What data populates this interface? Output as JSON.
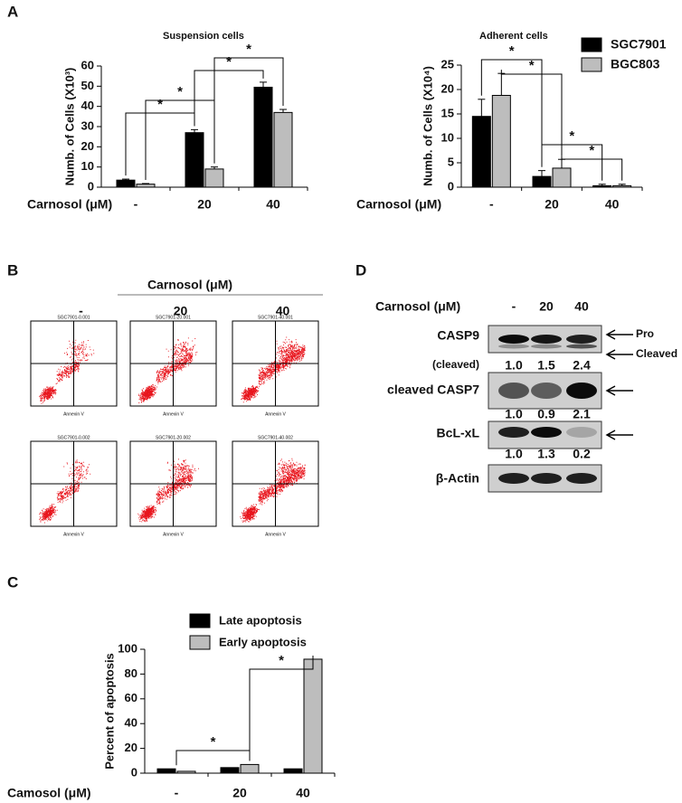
{
  "panel_labels": {
    "a": "A",
    "b": "B",
    "c": "C",
    "d": "D"
  },
  "significance_marker": "*",
  "chart_data": [
    {
      "type": "bar",
      "title": "Suspension cells",
      "y_label": "Numb. of Cells (X10³)",
      "x_label": "Carnosol (μM)",
      "categories": [
        "-",
        "20",
        "40"
      ],
      "series": [
        {
          "color": "#000000",
          "values": [
            3.5,
            27,
            49.5
          ],
          "errors": [
            0.5,
            1.5,
            2.5
          ]
        },
        {
          "color": "#bdbdbd",
          "values": [
            1.5,
            9,
            37
          ],
          "errors": [
            0.3,
            1,
            1.5
          ]
        }
      ],
      "ylim": [
        0,
        60
      ],
      "yticks": [
        0,
        10,
        20,
        30,
        40,
        50,
        60
      ]
    },
    {
      "type": "bar",
      "title": "Adherent cells",
      "y_label": "Numb. of Cells (X10⁴)",
      "x_label": "Carnosol (μM)",
      "categories": [
        "-",
        "20",
        "40"
      ],
      "series": [
        {
          "name": "SGC7901",
          "color": "#000000",
          "values": [
            14.5,
            2.2,
            0.3
          ],
          "errors": [
            3.5,
            1.2,
            0.3
          ]
        },
        {
          "name": "BGC803",
          "color": "#bdbdbd",
          "values": [
            18.8,
            3.9,
            0.3
          ],
          "errors": [
            4.5,
            1.8,
            0.3
          ]
        }
      ],
      "ylim": [
        0,
        25
      ],
      "yticks": [
        0,
        5,
        10,
        15,
        20,
        25
      ],
      "legend": "top-right"
    },
    {
      "type": "bar",
      "y_label": "Percent of apoptosis",
      "x_label": "Camosol (μM)",
      "categories": [
        "-",
        "20",
        "40"
      ],
      "series": [
        {
          "name": "Late apoptosis",
          "color": "#000000",
          "values": [
            3.5,
            4.5,
            3.5
          ]
        },
        {
          "name": "Early apoptosis",
          "color": "#bdbdbd",
          "values": [
            1.5,
            7,
            92
          ]
        }
      ],
      "ylim": [
        0,
        100
      ],
      "yticks": [
        0,
        20,
        40,
        60,
        80,
        100
      ],
      "legend": "top"
    }
  ],
  "flow_cytometry": {
    "header": "Carnosol (μM)",
    "columns": [
      "-",
      "20",
      "40"
    ],
    "x_label": "Annexin V",
    "plot_titles": [
      "SGC7901-0.001",
      "SGC7901-20.001",
      "SGC7901-40.001",
      "SGC7901-0.002",
      "SGC7901-20.002",
      "SGC7901-40.002"
    ]
  },
  "western_blot": {
    "header": "Carnosol (μM)",
    "lanes": [
      "-",
      "20",
      "40"
    ],
    "rows": [
      {
        "label": "CASP9",
        "sublabel": "(cleaved)",
        "quantification": [
          "1.0",
          "1.5",
          "2.4"
        ],
        "arrows": [
          "Pro",
          "Cleaved"
        ]
      },
      {
        "label": "cleaved CASP7",
        "quantification": [
          "1.0",
          "0.9",
          "2.1"
        ]
      },
      {
        "label": "BcL-xL",
        "quantification": [
          "1.0",
          "1.3",
          "0.2"
        ]
      },
      {
        "label": "β-Actin"
      }
    ]
  }
}
